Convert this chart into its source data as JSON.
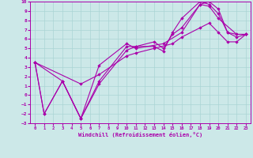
{
  "bg_color": "#cce8e8",
  "grid_color": "#aad4d4",
  "line_color": "#aa00aa",
  "marker_color": "#aa00aa",
  "xlabel": "Windchill (Refroidissement éolien,°C)",
  "xlim": [
    -0.5,
    23.5
  ],
  "ylim": [
    -3,
    10
  ],
  "xticks": [
    0,
    1,
    2,
    3,
    4,
    5,
    6,
    7,
    8,
    9,
    10,
    11,
    12,
    13,
    14,
    15,
    16,
    17,
    18,
    19,
    20,
    21,
    22,
    23
  ],
  "yticks": [
    -3,
    -2,
    -1,
    0,
    1,
    2,
    3,
    4,
    5,
    6,
    7,
    8,
    9,
    10
  ],
  "series": [
    {
      "x": [
        0,
        1,
        3,
        5,
        7,
        10,
        11,
        13,
        14,
        15,
        16,
        18,
        19,
        20,
        21,
        22,
        23
      ],
      "y": [
        3.5,
        -2.0,
        1.5,
        -2.5,
        1.5,
        5.2,
        5.2,
        5.2,
        4.7,
        6.7,
        8.2,
        10.0,
        9.7,
        8.7,
        6.7,
        6.5,
        6.5
      ]
    },
    {
      "x": [
        0,
        1,
        3,
        5,
        7,
        10,
        11,
        13,
        14,
        15,
        16,
        18,
        19,
        20,
        21,
        22,
        23
      ],
      "y": [
        3.5,
        -2.0,
        1.5,
        -2.5,
        1.2,
        4.8,
        5.2,
        5.7,
        5.0,
        6.5,
        7.2,
        9.7,
        10.0,
        9.2,
        6.7,
        6.2,
        6.5
      ]
    },
    {
      "x": [
        0,
        3,
        5,
        7,
        10,
        11,
        14,
        16,
        18,
        19,
        20,
        22,
        23
      ],
      "y": [
        3.5,
        1.5,
        -2.5,
        3.2,
        5.5,
        5.0,
        5.5,
        6.7,
        9.7,
        9.5,
        8.2,
        6.5,
        6.5
      ]
    },
    {
      "x": [
        0,
        5,
        7,
        10,
        11,
        13,
        15,
        16,
        18,
        19,
        20,
        21,
        22,
        23
      ],
      "y": [
        3.5,
        1.2,
        2.2,
        4.2,
        4.5,
        5.0,
        5.5,
        6.2,
        7.2,
        7.7,
        6.7,
        5.7,
        5.7,
        6.5
      ]
    }
  ]
}
